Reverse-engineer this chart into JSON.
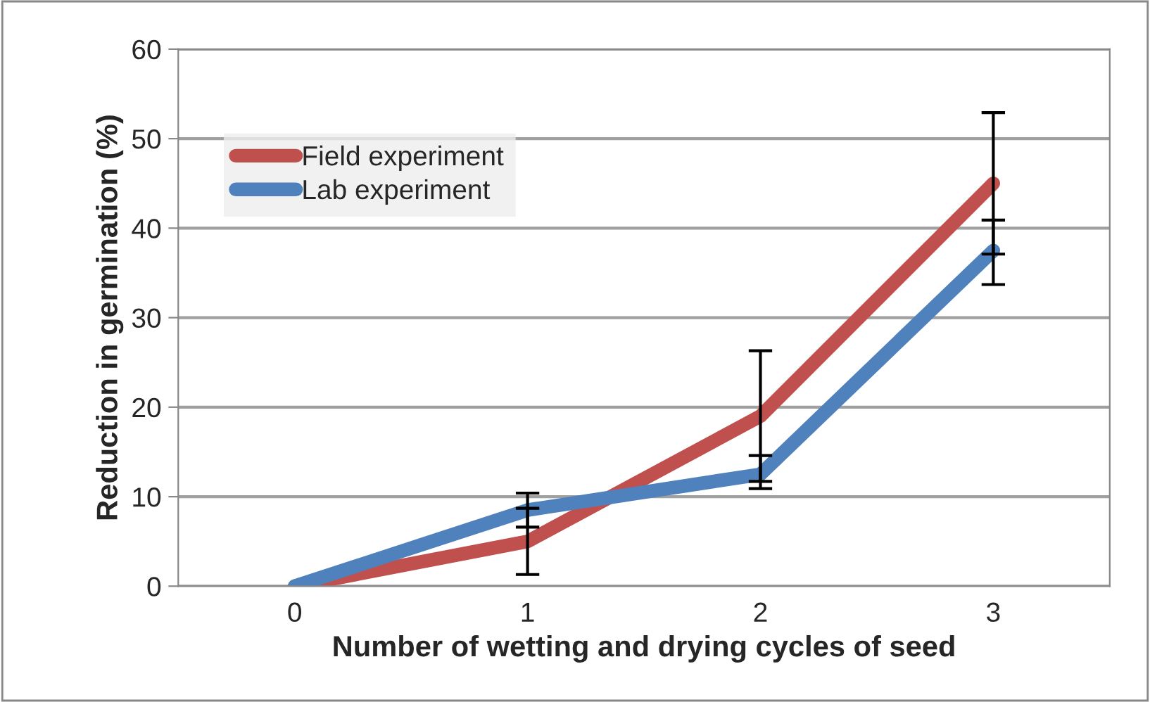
{
  "chart_data": {
    "type": "line",
    "xlabel": "Number of wetting and drying cycles of seed",
    "ylabel": "Reduction in germination (%)",
    "categories": [
      "0",
      "1",
      "2",
      "3"
    ],
    "series": [
      {
        "name": "Field experiment",
        "color": "#c0504d",
        "values": [
          0,
          5,
          19,
          45
        ],
        "errors": [
          null,
          [
            1.3,
            8.7
          ],
          [
            11.7,
            26.3
          ],
          [
            37.1,
            52.9
          ]
        ]
      },
      {
        "name": "Lab experiment",
        "color": "#4f81bd",
        "values": [
          0,
          8.5,
          12.5,
          37.5
        ],
        "errors": [
          null,
          [
            6.6,
            10.4
          ],
          [
            10.9,
            14.6
          ],
          [
            33.7,
            40.9
          ]
        ]
      }
    ],
    "ylim": [
      0,
      60
    ],
    "yticks": [
      0,
      10,
      20,
      30,
      40,
      50,
      60
    ],
    "grid": "y",
    "legend": "top left",
    "marker": "none",
    "line_style": "solid"
  }
}
